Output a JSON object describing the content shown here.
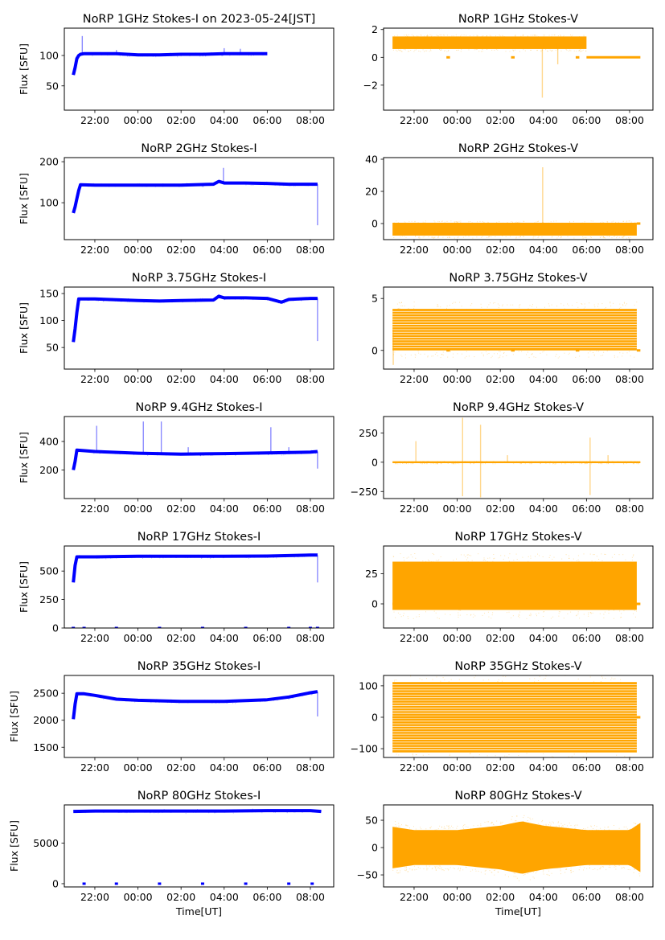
{
  "figure": {
    "background": "#ffffff",
    "colors": {
      "stokes_i": "#0000ff",
      "stokes_v": "#ffa500"
    }
  },
  "chart_data": [
    {
      "type": "scatter",
      "column": "left",
      "row": 0,
      "title": "NoRP 1GHz Stokes-I on 2023-05-24[JST]",
      "ylabel": "Flux [SFU]",
      "xlabel": "",
      "xlim": [
        "20:35",
        "09:05"
      ],
      "xticks": [
        "22:00",
        "00:00",
        "02:00",
        "04:00",
        "06:00",
        "08:00"
      ],
      "ylim": [
        10,
        145
      ],
      "yticks": [
        50,
        100
      ],
      "color": "#0000ff",
      "series": [
        {
          "name": "Stokes-I",
          "x": [
            "21:00",
            "21:05",
            "21:10",
            "21:15",
            "21:20",
            "21:30",
            "22:00",
            "23:00",
            "00:00",
            "01:00",
            "02:00",
            "03:00",
            "04:00",
            "05:00",
            "06:00"
          ],
          "y": [
            68,
            80,
            95,
            100,
            102,
            103,
            103,
            103,
            101,
            101,
            102,
            102,
            103,
            103,
            103
          ]
        }
      ],
      "spikes": [
        {
          "x": "21:25",
          "y": 132
        },
        {
          "x": "23:00",
          "y": 109
        },
        {
          "x": "04:00",
          "y": 112
        },
        {
          "x": "04:45",
          "y": 111
        }
      ]
    },
    {
      "type": "scatter",
      "column": "right",
      "row": 0,
      "title": "NoRP 1GHz Stokes-V",
      "ylabel": "",
      "xlabel": "",
      "xlim": [
        "20:35",
        "09:05"
      ],
      "xticks": [
        "22:00",
        "00:00",
        "02:00",
        "04:00",
        "06:00",
        "08:00"
      ],
      "ylim": [
        -3.8,
        2.1
      ],
      "yticks": [
        -2,
        0,
        2
      ],
      "color": "#ffa500",
      "band": {
        "x_start": "21:00",
        "x_end": "06:00",
        "center": 1.05,
        "half_width": 0.45
      },
      "flat_segments": [
        {
          "x_start": "23:30",
          "x_end": "23:40",
          "y": 0
        },
        {
          "x_start": "02:30",
          "x_end": "02:40",
          "y": 0
        },
        {
          "x_start": "05:30",
          "x_end": "05:40",
          "y": 0
        },
        {
          "x_start": "06:00",
          "x_end": "08:30",
          "y": 0
        }
      ],
      "spikes": [
        {
          "x": "03:57",
          "y": -2.9
        },
        {
          "x": "04:40",
          "y": -0.5
        }
      ]
    },
    {
      "type": "scatter",
      "column": "left",
      "row": 1,
      "title": "NoRP 2GHz Stokes-I",
      "ylabel": "Flux [SFU]",
      "xlabel": "",
      "xlim": [
        "20:35",
        "09:05"
      ],
      "xticks": [
        "22:00",
        "00:00",
        "02:00",
        "04:00",
        "06:00",
        "08:00"
      ],
      "ylim": [
        10,
        210
      ],
      "yticks": [
        100,
        200
      ],
      "color": "#0000ff",
      "series": [
        {
          "name": "Stokes-I",
          "x": [
            "21:00",
            "21:05",
            "21:10",
            "21:15",
            "21:20",
            "22:00",
            "00:00",
            "02:00",
            "03:30",
            "03:45",
            "04:00",
            "05:00",
            "06:00",
            "07:00",
            "08:00",
            "08:20"
          ],
          "y": [
            75,
            90,
            110,
            130,
            144,
            143,
            143,
            143,
            145,
            152,
            148,
            148,
            147,
            145,
            145,
            145
          ]
        }
      ],
      "spikes": [
        {
          "x": "03:58",
          "y": 185
        },
        {
          "x": "08:20",
          "y": 45
        }
      ]
    },
    {
      "type": "scatter",
      "column": "right",
      "row": 1,
      "title": "NoRP 2GHz Stokes-V",
      "ylabel": "",
      "xlabel": "",
      "xlim": [
        "20:35",
        "09:05"
      ],
      "xticks": [
        "22:00",
        "00:00",
        "02:00",
        "04:00",
        "06:00",
        "08:00"
      ],
      "ylim": [
        -10,
        41
      ],
      "yticks": [
        0,
        20,
        40
      ],
      "color": "#ffa500",
      "band": {
        "x_start": "21:00",
        "x_end": "08:20",
        "center": -3.5,
        "half_width": 4
      },
      "flat_segments": [
        {
          "x_start": "08:20",
          "x_end": "08:30",
          "y": 0
        }
      ],
      "spikes": [
        {
          "x": "03:58",
          "y": 35
        }
      ]
    },
    {
      "type": "scatter",
      "column": "left",
      "row": 2,
      "title": "NoRP 3.75GHz Stokes-I",
      "ylabel": "Flux [SFU]",
      "xlabel": "",
      "xlim": [
        "20:35",
        "09:05"
      ],
      "xticks": [
        "22:00",
        "00:00",
        "02:00",
        "04:00",
        "06:00",
        "08:00"
      ],
      "ylim": [
        10,
        162
      ],
      "yticks": [
        50,
        100,
        150
      ],
      "color": "#0000ff",
      "series": [
        {
          "name": "Stokes-I",
          "x": [
            "21:00",
            "21:05",
            "21:10",
            "21:15",
            "22:00",
            "00:00",
            "01:00",
            "02:00",
            "03:30",
            "03:45",
            "04:00",
            "05:00",
            "06:00",
            "06:40",
            "07:00",
            "08:00",
            "08:20"
          ],
          "y": [
            60,
            85,
            115,
            140,
            140,
            137,
            136,
            137,
            138,
            145,
            142,
            142,
            141,
            134,
            139,
            141,
            141
          ]
        }
      ],
      "spikes": [
        {
          "x": "08:20",
          "y": 62
        }
      ]
    },
    {
      "type": "scatter",
      "column": "right",
      "row": 2,
      "title": "NoRP 3.75GHz Stokes-V",
      "ylabel": "",
      "xlabel": "",
      "xlim": [
        "20:35",
        "09:05"
      ],
      "xticks": [
        "22:00",
        "00:00",
        "02:00",
        "04:00",
        "06:00",
        "08:00"
      ],
      "ylim": [
        -1.8,
        6.1
      ],
      "yticks": [
        0,
        5
      ],
      "color": "#ffa500",
      "band": {
        "x_start": "21:00",
        "x_end": "08:20",
        "center": 2,
        "half_width": 2,
        "quantized": true
      },
      "flat_segments": [
        {
          "x_start": "23:30",
          "x_end": "23:40",
          "y": 0
        },
        {
          "x_start": "02:30",
          "x_end": "02:40",
          "y": 0
        },
        {
          "x_start": "05:30",
          "x_end": "05:40",
          "y": 0
        },
        {
          "x_start": "08:20",
          "x_end": "08:30",
          "y": 0
        }
      ],
      "spikes": [
        {
          "x": "21:02",
          "y": -1.4
        }
      ]
    },
    {
      "type": "scatter",
      "column": "left",
      "row": 3,
      "title": "NoRP 9.4GHz Stokes-I",
      "ylabel": "Flux [SFU]",
      "xlabel": "",
      "xlim": [
        "20:35",
        "09:05"
      ],
      "xticks": [
        "22:00",
        "00:00",
        "02:00",
        "04:00",
        "06:00",
        "08:00"
      ],
      "ylim": [
        0,
        575
      ],
      "yticks": [
        200,
        400
      ],
      "color": "#0000ff",
      "series": [
        {
          "name": "Stokes-I",
          "x": [
            "21:00",
            "21:05",
            "21:10",
            "22:00",
            "00:00",
            "02:00",
            "04:00",
            "06:00",
            "08:00",
            "08:20"
          ],
          "y": [
            200,
            260,
            340,
            330,
            318,
            312,
            315,
            320,
            325,
            330
          ]
        }
      ],
      "spikes": [
        {
          "x": "22:05",
          "y": 510
        },
        {
          "x": "00:15",
          "y": 540
        },
        {
          "x": "01:05",
          "y": 540
        },
        {
          "x": "02:20",
          "y": 360
        },
        {
          "x": "06:10",
          "y": 500
        },
        {
          "x": "07:00",
          "y": 360
        },
        {
          "x": "08:20",
          "y": 210
        }
      ]
    },
    {
      "type": "scatter",
      "column": "right",
      "row": 3,
      "title": "NoRP 9.4GHz Stokes-V",
      "ylabel": "",
      "xlabel": "",
      "xlim": [
        "20:35",
        "09:05"
      ],
      "xticks": [
        "22:00",
        "00:00",
        "02:00",
        "04:00",
        "06:00",
        "08:00"
      ],
      "ylim": [
        -310,
        390
      ],
      "yticks": [
        -250,
        0,
        250
      ],
      "color": "#ffa500",
      "band": {
        "x_start": "21:00",
        "x_end": "08:30",
        "center": 0,
        "half_width": 8
      },
      "spikes": [
        {
          "x": "22:05",
          "y": 180
        },
        {
          "x": "00:15",
          "y": 380
        },
        {
          "x": "00:15",
          "y": -290
        },
        {
          "x": "01:05",
          "y": 320
        },
        {
          "x": "01:05",
          "y": -300
        },
        {
          "x": "02:20",
          "y": 60
        },
        {
          "x": "06:10",
          "y": 210
        },
        {
          "x": "06:10",
          "y": -280
        },
        {
          "x": "07:00",
          "y": 60
        }
      ]
    },
    {
      "type": "scatter",
      "column": "left",
      "row": 4,
      "title": "NoRP 17GHz Stokes-I",
      "ylabel": "Flux [SFU]",
      "xlabel": "",
      "xlim": [
        "20:35",
        "09:05"
      ],
      "xticks": [
        "22:00",
        "00:00",
        "02:00",
        "04:00",
        "06:00",
        "08:00"
      ],
      "ylim": [
        0,
        720
      ],
      "yticks": [
        0,
        250,
        500
      ],
      "color": "#0000ff",
      "series": [
        {
          "name": "Stokes-I",
          "x": [
            "21:00",
            "21:05",
            "21:10",
            "22:00",
            "00:00",
            "02:00",
            "04:00",
            "06:00",
            "08:00",
            "08:20"
          ],
          "y": [
            400,
            550,
            625,
            625,
            630,
            630,
            630,
            632,
            640,
            640
          ]
        }
      ],
      "zero_dots": [
        "21:00",
        "21:30",
        "23:00",
        "01:00",
        "03:00",
        "05:00",
        "07:00",
        "08:00",
        "08:20"
      ],
      "spikes": [
        {
          "x": "08:20",
          "y": 400
        }
      ]
    },
    {
      "type": "scatter",
      "column": "right",
      "row": 4,
      "title": "NoRP 17GHz Stokes-V",
      "ylabel": "",
      "xlabel": "",
      "xlim": [
        "20:35",
        "09:05"
      ],
      "xticks": [
        "22:00",
        "00:00",
        "02:00",
        "04:00",
        "06:00",
        "08:00"
      ],
      "ylim": [
        -20,
        48
      ],
      "yticks": [
        0,
        25
      ],
      "color": "#ffa500",
      "band": {
        "x_start": "21:00",
        "x_end": "08:20",
        "center": 15,
        "half_width": 20
      },
      "flat_segments": [
        {
          "x_start": "21:00",
          "x_end": "08:30",
          "y": 0
        }
      ]
    },
    {
      "type": "scatter",
      "column": "left",
      "row": 5,
      "title": "NoRP 35GHz Stokes-I",
      "ylabel": "Flux [SFU]",
      "xlabel": "",
      "xlim": [
        "20:35",
        "09:05"
      ],
      "xticks": [
        "22:00",
        "00:00",
        "02:00",
        "04:00",
        "06:00",
        "08:00"
      ],
      "ylim": [
        1310,
        2830
      ],
      "yticks": [
        1500,
        2000,
        2500
      ],
      "color": "#0000ff",
      "series": [
        {
          "name": "Stokes-I",
          "x": [
            "21:00",
            "21:05",
            "21:10",
            "21:30",
            "22:00",
            "23:00",
            "00:00",
            "02:00",
            "04:00",
            "06:00",
            "07:00",
            "08:00",
            "08:20"
          ],
          "y": [
            2020,
            2300,
            2490,
            2490,
            2460,
            2390,
            2370,
            2350,
            2350,
            2380,
            2430,
            2510,
            2530
          ]
        }
      ],
      "spikes": [
        {
          "x": "08:20",
          "y": 2070
        }
      ]
    },
    {
      "type": "scatter",
      "column": "right",
      "row": 5,
      "title": "NoRP 35GHz Stokes-V",
      "ylabel": "",
      "xlabel": "",
      "xlim": [
        "20:35",
        "09:05"
      ],
      "xticks": [
        "22:00",
        "00:00",
        "02:00",
        "04:00",
        "06:00",
        "08:00"
      ],
      "ylim": [
        -128,
        133
      ],
      "yticks": [
        -100,
        0,
        100
      ],
      "color": "#ffa500",
      "band": {
        "x_start": "21:00",
        "x_end": "08:20",
        "center": 0,
        "half_width": 112,
        "quantized": true
      },
      "flat_segments": [
        {
          "x_start": "21:00",
          "x_end": "08:30",
          "y": 0
        }
      ]
    },
    {
      "type": "scatter",
      "column": "left",
      "row": 6,
      "title": "NoRP 80GHz Stokes-I",
      "ylabel": "Flux [SFU]",
      "xlabel": "Time[UT]",
      "xlim": [
        "20:35",
        "09:05"
      ],
      "xticks": [
        "22:00",
        "00:00",
        "02:00",
        "04:00",
        "06:00",
        "08:00"
      ],
      "ylim": [
        -400,
        9700
      ],
      "yticks": [
        0,
        5000
      ],
      "color": "#0000ff",
      "series": [
        {
          "name": "Stokes-I",
          "x": [
            "21:00",
            "22:00",
            "00:00",
            "02:00",
            "04:00",
            "06:00",
            "08:00",
            "08:30"
          ],
          "y": [
            8900,
            8950,
            8950,
            8950,
            8950,
            9000,
            9000,
            8900
          ]
        }
      ],
      "zero_dots": [
        "21:30",
        "23:00",
        "01:00",
        "03:00",
        "05:00",
        "07:00",
        "08:05"
      ]
    },
    {
      "type": "scatter",
      "column": "right",
      "row": 6,
      "title": "NoRP 80GHz Stokes-V",
      "ylabel": "",
      "xlabel": "Time[UT]",
      "xlim": [
        "20:35",
        "09:05"
      ],
      "xticks": [
        "22:00",
        "00:00",
        "02:00",
        "04:00",
        "06:00",
        "08:00"
      ],
      "ylim": [
        -72,
        78
      ],
      "yticks": [
        -50,
        0,
        50
      ],
      "color": "#ffa500",
      "band_envelope": {
        "x": [
          "21:00",
          "22:00",
          "00:00",
          "02:00",
          "03:00",
          "04:00",
          "06:00",
          "08:00",
          "08:30"
        ],
        "half_width": [
          38,
          32,
          32,
          40,
          48,
          40,
          32,
          32,
          45
        ]
      }
    }
  ]
}
